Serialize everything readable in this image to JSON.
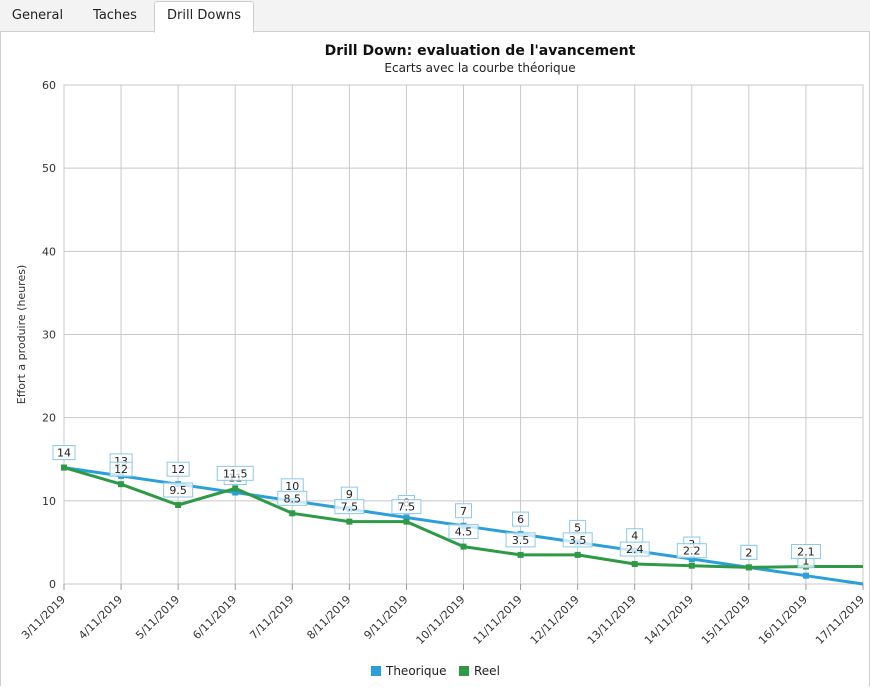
{
  "tabs": [
    {
      "label": "General"
    },
    {
      "label": "Taches"
    },
    {
      "label": "Drill Downs"
    }
  ],
  "active_tab": 2,
  "chart_data": {
    "type": "line",
    "title": "Drill Down: evaluation de l'avancement",
    "subtitle": "Ecarts avec la courbe théorique",
    "ylabel": "Effort a produire (heures)",
    "xlabel": "",
    "ylim": [
      0,
      60
    ],
    "yticks": [
      0,
      10,
      20,
      30,
      40,
      50,
      60
    ],
    "grid": true,
    "legend_position": "bottom",
    "categories": [
      "3/11/2019",
      "4/11/2019",
      "5/11/2019",
      "6/11/2019",
      "7/11/2019",
      "8/11/2019",
      "9/11/2019",
      "10/11/2019",
      "11/11/2019",
      "12/11/2019",
      "13/11/2019",
      "14/11/2019",
      "15/11/2019",
      "16/11/2019",
      "17/11/2019"
    ],
    "series": [
      {
        "name": "Theorique",
        "color": "#2b9fd9",
        "values": [
          14,
          13,
          12,
          11,
          10,
          9,
          8,
          7,
          6,
          5,
          4,
          3,
          2,
          1,
          0
        ]
      },
      {
        "name": "Reel",
        "color": "#2e9a45",
        "values": [
          14,
          12,
          9.5,
          11.5,
          8.5,
          7.5,
          7.5,
          4.5,
          3.5,
          3.5,
          2.4,
          2.2,
          2,
          2.1,
          2.1
        ]
      }
    ],
    "data_labels": {
      "Theorique": [
        "14",
        "13",
        "12",
        "11",
        "10",
        "9",
        "8",
        "7",
        "6",
        "5",
        "4",
        "3",
        "2",
        "1",
        null
      ],
      "Reel": [
        "14",
        "12",
        "9.5",
        "11.5",
        "8.5",
        "7.5",
        "7.5",
        "4.5",
        "3.5",
        "3.5",
        "2.4",
        "2.2",
        "2",
        "2.1",
        null
      ]
    }
  }
}
